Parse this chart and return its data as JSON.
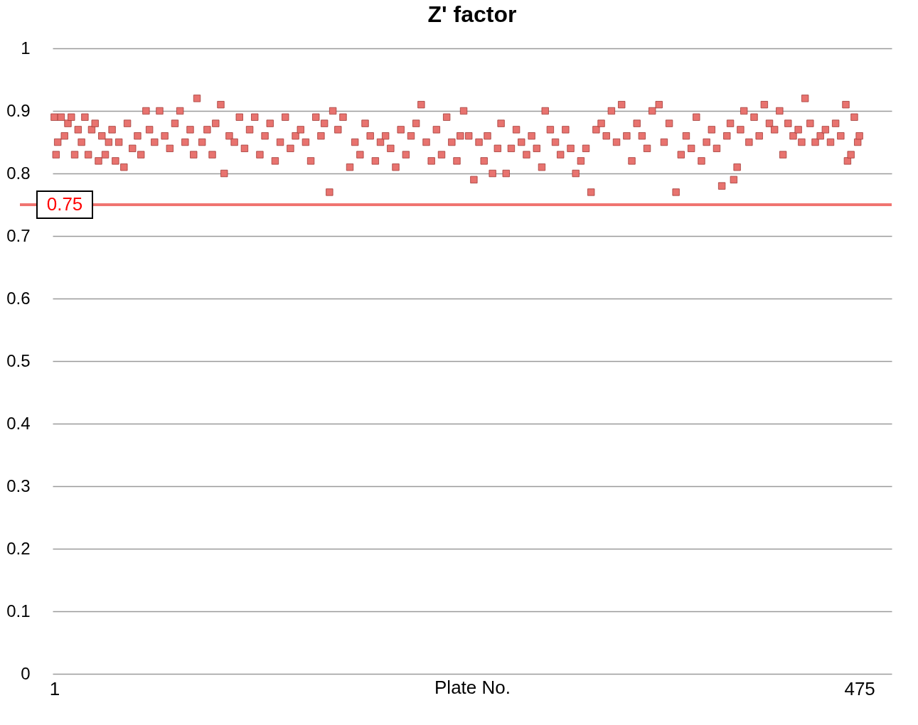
{
  "chart_data": {
    "type": "scatter",
    "title": "Z' factor",
    "xlabel": "Plate No.",
    "xlim": [
      0,
      494
    ],
    "xticks": [
      1,
      475
    ],
    "ylim": [
      0,
      1
    ],
    "yticks": [
      0,
      0.1,
      0.2,
      0.3,
      0.4,
      0.5,
      0.6,
      0.7,
      0.8,
      0.9,
      1
    ],
    "grid": "y",
    "marker": "square",
    "series": [
      {
        "color": "#e8736f",
        "x": [
          1,
          2,
          3,
          5,
          7,
          9,
          11,
          13,
          15,
          17,
          19,
          21,
          23,
          25,
          27,
          29,
          31,
          33,
          35,
          37,
          39,
          42,
          44,
          47,
          50,
          52,
          55,
          57,
          60,
          63,
          66,
          69,
          72,
          75,
          78,
          81,
          83,
          85,
          88,
          91,
          94,
          96,
          99,
          101,
          104,
          107,
          110,
          113,
          116,
          119,
          122,
          125,
          128,
          131,
          134,
          137,
          140,
          143,
          146,
          149,
          152,
          155,
          158,
          160,
          163,
          165,
          168,
          171,
          175,
          178,
          181,
          184,
          187,
          190,
          193,
          196,
          199,
          202,
          205,
          208,
          211,
          214,
          217,
          220,
          223,
          226,
          229,
          232,
          235,
          238,
          240,
          242,
          245,
          248,
          251,
          254,
          256,
          259,
          262,
          264,
          267,
          270,
          273,
          276,
          279,
          282,
          285,
          288,
          290,
          293,
          296,
          299,
          302,
          305,
          308,
          311,
          314,
          317,
          320,
          323,
          326,
          329,
          332,
          335,
          338,
          341,
          344,
          347,
          350,
          353,
          357,
          360,
          363,
          367,
          370,
          373,
          376,
          379,
          382,
          385,
          388,
          391,
          394,
          397,
          399,
          401,
          403,
          405,
          407,
          410,
          413,
          416,
          419,
          422,
          425,
          428,
          430,
          433,
          436,
          439,
          441,
          443,
          446,
          449,
          452,
          455,
          458,
          461,
          464,
          467,
          468,
          470,
          472,
          474,
          475
        ],
        "values": [
          0.89,
          0.83,
          0.85,
          0.89,
          0.86,
          0.88,
          0.89,
          0.83,
          0.87,
          0.85,
          0.89,
          0.83,
          0.87,
          0.88,
          0.82,
          0.86,
          0.83,
          0.85,
          0.87,
          0.82,
          0.85,
          0.81,
          0.88,
          0.84,
          0.86,
          0.83,
          0.9,
          0.87,
          0.85,
          0.9,
          0.86,
          0.84,
          0.88,
          0.9,
          0.85,
          0.87,
          0.83,
          0.92,
          0.85,
          0.87,
          0.83,
          0.88,
          0.91,
          0.8,
          0.86,
          0.85,
          0.89,
          0.84,
          0.87,
          0.89,
          0.83,
          0.86,
          0.88,
          0.82,
          0.85,
          0.89,
          0.84,
          0.86,
          0.87,
          0.85,
          0.82,
          0.89,
          0.86,
          0.88,
          0.77,
          0.9,
          0.87,
          0.89,
          0.81,
          0.85,
          0.83,
          0.88,
          0.86,
          0.82,
          0.85,
          0.86,
          0.84,
          0.81,
          0.87,
          0.83,
          0.86,
          0.88,
          0.91,
          0.85,
          0.82,
          0.87,
          0.83,
          0.89,
          0.85,
          0.82,
          0.86,
          0.9,
          0.86,
          0.79,
          0.85,
          0.82,
          0.86,
          0.8,
          0.84,
          0.88,
          0.8,
          0.84,
          0.87,
          0.85,
          0.83,
          0.86,
          0.84,
          0.81,
          0.9,
          0.87,
          0.85,
          0.83,
          0.87,
          0.84,
          0.8,
          0.82,
          0.84,
          0.77,
          0.87,
          0.88,
          0.86,
          0.9,
          0.85,
          0.91,
          0.86,
          0.82,
          0.88,
          0.86,
          0.84,
          0.9,
          0.91,
          0.85,
          0.88,
          0.77,
          0.83,
          0.86,
          0.84,
          0.89,
          0.82,
          0.85,
          0.87,
          0.84,
          0.78,
          0.86,
          0.88,
          0.79,
          0.81,
          0.87,
          0.9,
          0.85,
          0.89,
          0.86,
          0.91,
          0.88,
          0.87,
          0.9,
          0.83,
          0.88,
          0.86,
          0.87,
          0.85,
          0.92,
          0.88,
          0.85,
          0.86,
          0.87,
          0.85,
          0.88,
          0.86,
          0.91,
          0.82,
          0.83,
          0.89,
          0.85,
          0.86
        ]
      }
    ],
    "ref_lines": [
      {
        "axis": "y",
        "value": 0.75,
        "label": "0.75",
        "color": "#f07470"
      }
    ]
  }
}
